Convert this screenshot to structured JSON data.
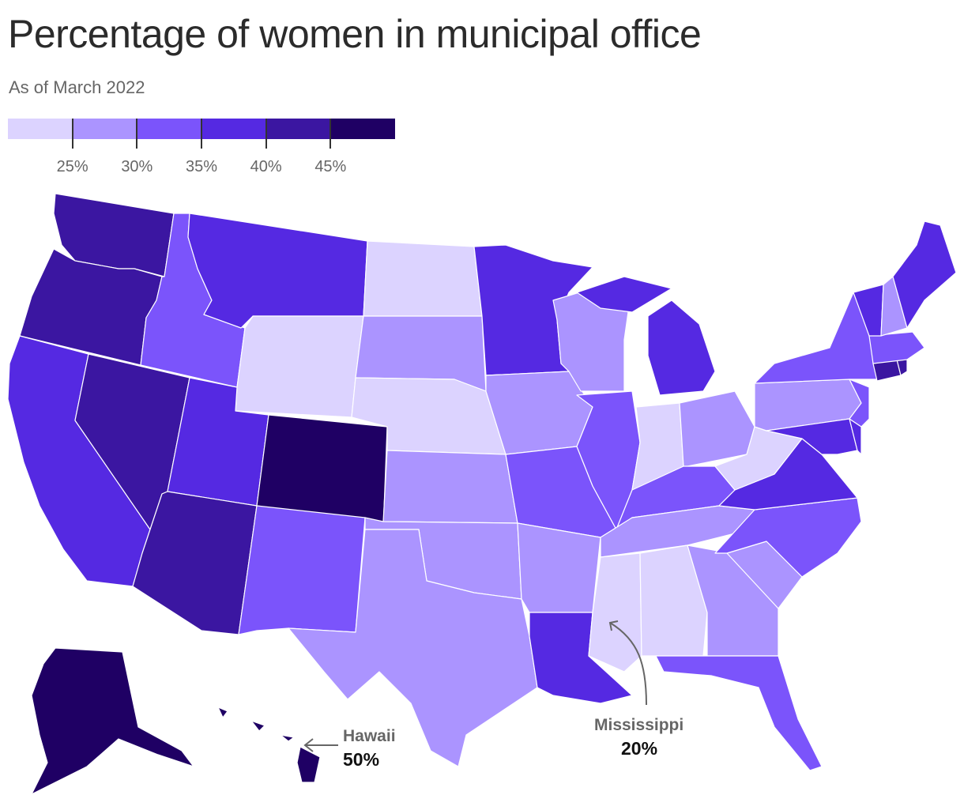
{
  "title": "Percentage of women in municipal office",
  "subtitle": "As of March 2022",
  "legend": {
    "colors": [
      "#dcd3ff",
      "#ab94ff",
      "#7b54fb",
      "#5529e2",
      "#3b16a1",
      "#1f0064"
    ],
    "ticks": [
      "25%",
      "30%",
      "35%",
      "40%",
      "45%"
    ]
  },
  "annotations": {
    "hawaii": {
      "name": "Hawaii",
      "value": "50%"
    },
    "mississippi": {
      "name": "Mississippi",
      "value": "20%"
    }
  },
  "map_data": {
    "type": "choropleth",
    "region": "United States",
    "bins": [
      "<25%",
      "25–30%",
      "30–35%",
      "35–40%",
      "40–45%",
      "≥45%"
    ],
    "states": {
      "Washington": 4,
      "Oregon": 4,
      "California": 3,
      "Nevada": 4,
      "Idaho": 2,
      "Montana": 3,
      "Wyoming": 0,
      "Utah": 3,
      "Arizona": 4,
      "Colorado": 5,
      "New Mexico": 2,
      "North Dakota": 0,
      "South Dakota": 1,
      "Nebraska": 0,
      "Kansas": 1,
      "Oklahoma": 1,
      "Texas": 1,
      "Minnesota": 3,
      "Iowa": 1,
      "Missouri": 2,
      "Arkansas": 1,
      "Louisiana": 3,
      "Wisconsin": 1,
      "Illinois": 2,
      "Michigan": 3,
      "Indiana": 0,
      "Ohio": 1,
      "Kentucky": 2,
      "Tennessee": 1,
      "Mississippi": 0,
      "Alabama": 0,
      "Georgia": 1,
      "Florida": 2,
      "South Carolina": 1,
      "North Carolina": 2,
      "Virginia": 3,
      "West Virginia": 0,
      "Pennsylvania": 1,
      "New York": 2,
      "Maryland": 3,
      "Delaware": 3,
      "New Jersey": 2,
      "Connecticut": 4,
      "Rhode Island": 4,
      "Massachusetts": 2,
      "Vermont": 3,
      "New Hampshire": 1,
      "Maine": 3,
      "Alaska": 5,
      "Hawaii": 5
    }
  }
}
